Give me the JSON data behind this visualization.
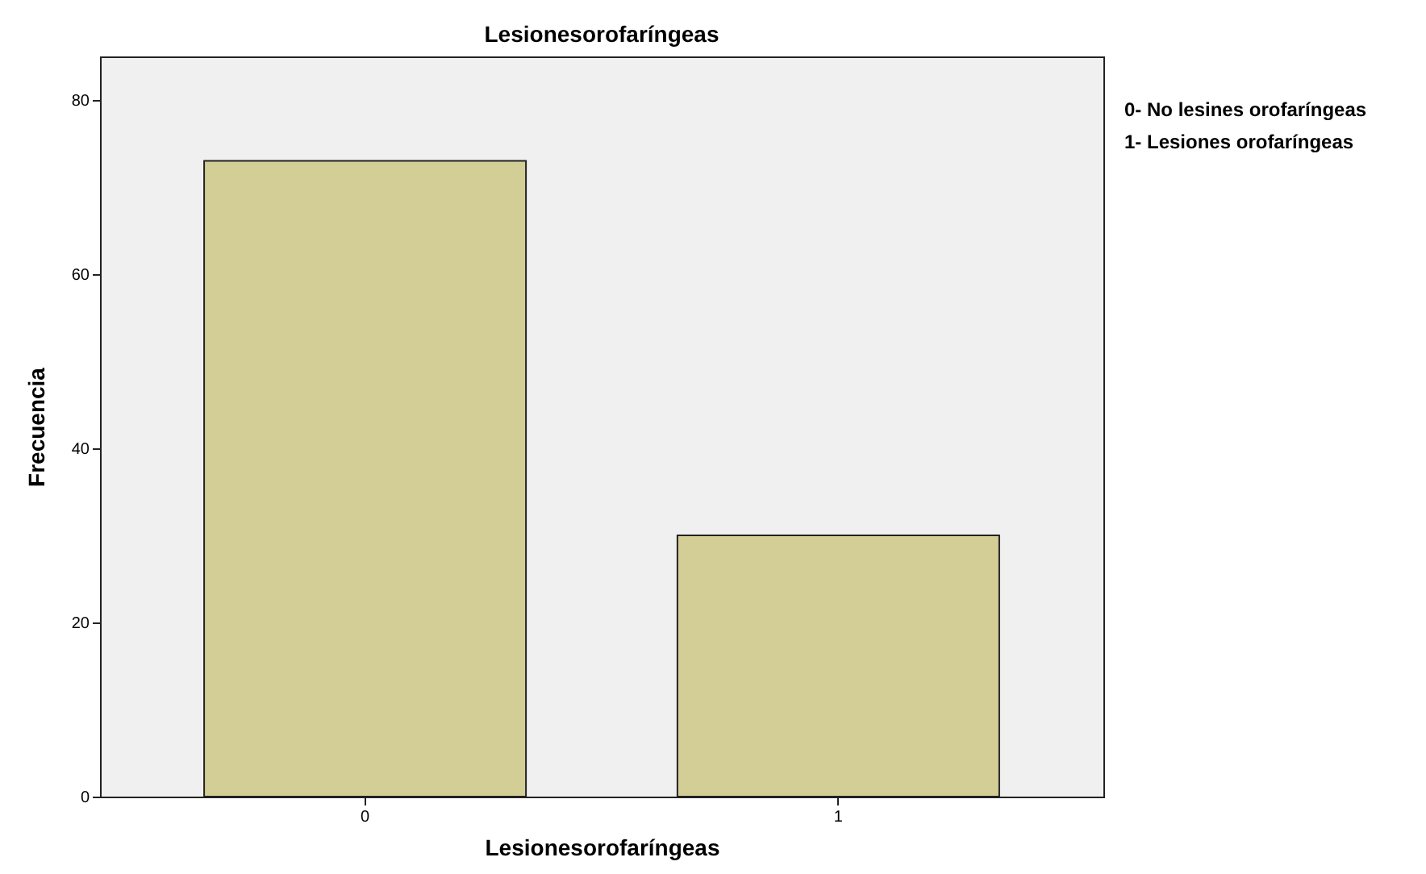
{
  "chart_data": {
    "type": "bar",
    "title": "Lesionesorofaríngeas",
    "xlabel": "Lesionesorofaríngeas",
    "ylabel": "Frecuencia",
    "categories": [
      "0",
      "1"
    ],
    "values": [
      73,
      30
    ],
    "color": "#d3cd96",
    "ylim": [
      0,
      85
    ],
    "yticks": [
      0,
      20,
      40,
      60,
      80
    ],
    "grid": false,
    "annotations": [
      "0- No lesines orofaríngeas",
      "1- Lesiones orofaríngeas"
    ]
  }
}
